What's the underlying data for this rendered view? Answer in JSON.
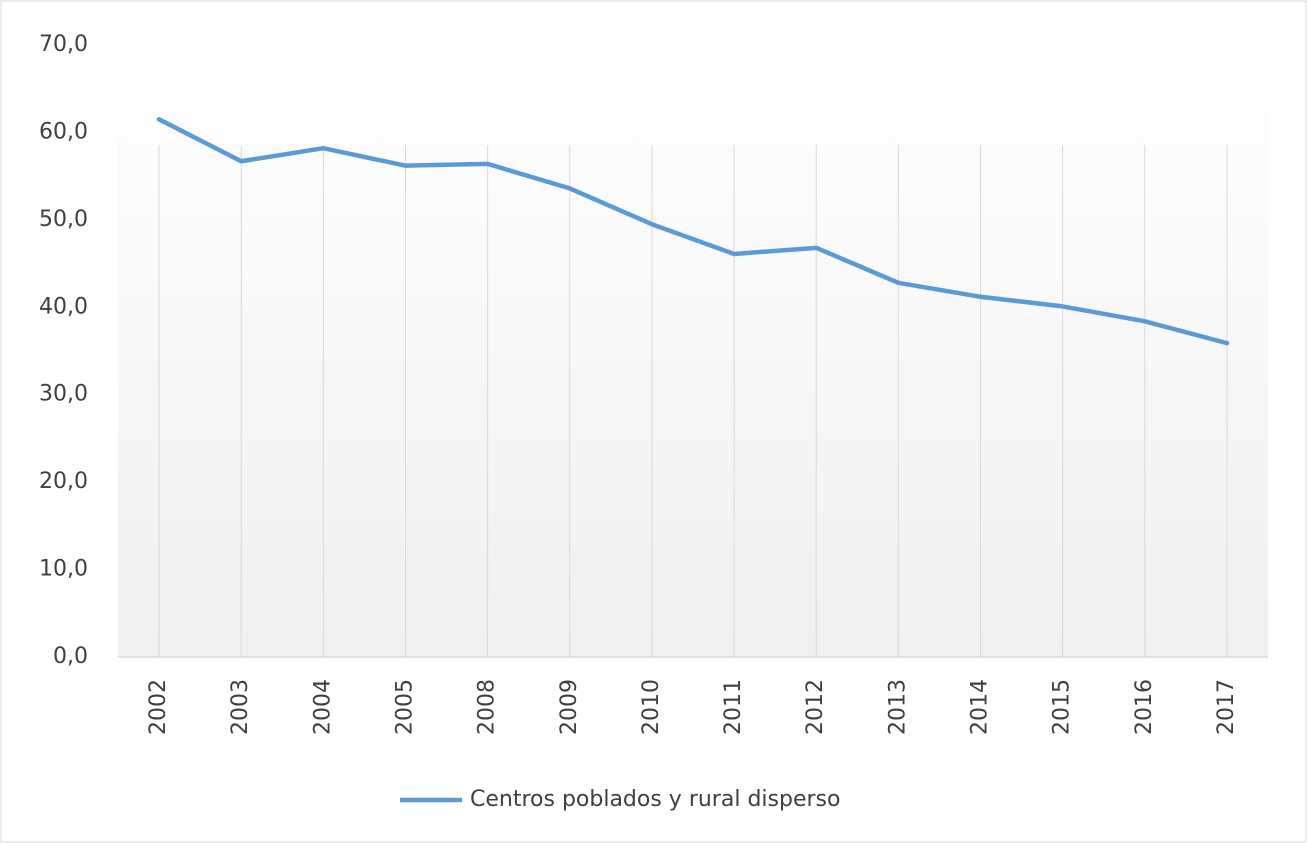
{
  "chart_data": {
    "type": "line",
    "categories": [
      "2002",
      "2003",
      "2004",
      "2005",
      "2008",
      "2009",
      "2010",
      "2011",
      "2012",
      "2013",
      "2014",
      "2015",
      "2016",
      "2017"
    ],
    "series": [
      {
        "name": "Centros poblados y rural disperso",
        "color": "#5b9bd5",
        "values": [
          61.5,
          56.7,
          58.2,
          56.2,
          56.4,
          53.6,
          49.5,
          46.1,
          46.8,
          42.8,
          41.2,
          40.1,
          38.4,
          35.9
        ]
      }
    ],
    "ylim": [
      0,
      70
    ],
    "yticks": [
      {
        "value": 0,
        "label": "0,0"
      },
      {
        "value": 10,
        "label": "10,0"
      },
      {
        "value": 20,
        "label": "20,0"
      },
      {
        "value": 30,
        "label": "30,0"
      },
      {
        "value": 40,
        "label": "40,0"
      },
      {
        "value": 50,
        "label": "50,0"
      },
      {
        "value": 60,
        "label": "60,0"
      },
      {
        "value": 70,
        "label": "70,0"
      }
    ],
    "xgrid": true,
    "legend": "bottom"
  }
}
